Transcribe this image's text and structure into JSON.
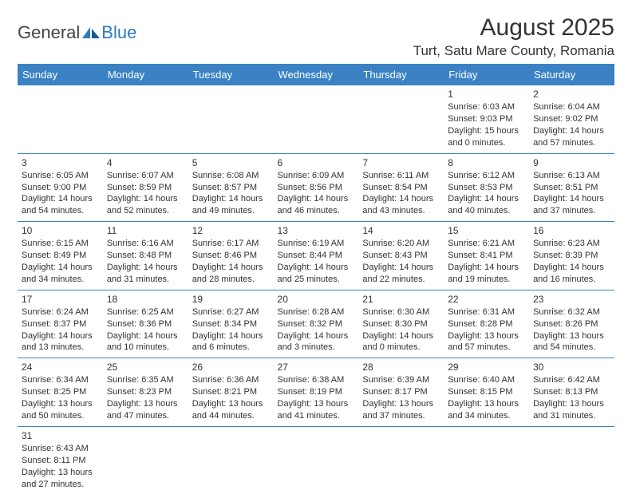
{
  "brand": {
    "part1": "General",
    "part2": "Blue"
  },
  "title": "August 2025",
  "location": "Turt, Satu Mare County, Romania",
  "colors": {
    "header_bg": "#3a82c4",
    "header_fg": "#ffffff",
    "border": "#3a82c4",
    "text": "#333333",
    "brand_accent": "#2b7bbf"
  },
  "weekdays": [
    "Sunday",
    "Monday",
    "Tuesday",
    "Wednesday",
    "Thursday",
    "Friday",
    "Saturday"
  ],
  "weeks": [
    [
      null,
      null,
      null,
      null,
      null,
      {
        "n": "1",
        "sunrise": "6:03 AM",
        "sunset": "9:03 PM",
        "day_h": "15",
        "day_m": "0"
      },
      {
        "n": "2",
        "sunrise": "6:04 AM",
        "sunset": "9:02 PM",
        "day_h": "14",
        "day_m": "57"
      }
    ],
    [
      {
        "n": "3",
        "sunrise": "6:05 AM",
        "sunset": "9:00 PM",
        "day_h": "14",
        "day_m": "54"
      },
      {
        "n": "4",
        "sunrise": "6:07 AM",
        "sunset": "8:59 PM",
        "day_h": "14",
        "day_m": "52"
      },
      {
        "n": "5",
        "sunrise": "6:08 AM",
        "sunset": "8:57 PM",
        "day_h": "14",
        "day_m": "49"
      },
      {
        "n": "6",
        "sunrise": "6:09 AM",
        "sunset": "8:56 PM",
        "day_h": "14",
        "day_m": "46"
      },
      {
        "n": "7",
        "sunrise": "6:11 AM",
        "sunset": "8:54 PM",
        "day_h": "14",
        "day_m": "43"
      },
      {
        "n": "8",
        "sunrise": "6:12 AM",
        "sunset": "8:53 PM",
        "day_h": "14",
        "day_m": "40"
      },
      {
        "n": "9",
        "sunrise": "6:13 AM",
        "sunset": "8:51 PM",
        "day_h": "14",
        "day_m": "37"
      }
    ],
    [
      {
        "n": "10",
        "sunrise": "6:15 AM",
        "sunset": "8:49 PM",
        "day_h": "14",
        "day_m": "34"
      },
      {
        "n": "11",
        "sunrise": "6:16 AM",
        "sunset": "8:48 PM",
        "day_h": "14",
        "day_m": "31"
      },
      {
        "n": "12",
        "sunrise": "6:17 AM",
        "sunset": "8:46 PM",
        "day_h": "14",
        "day_m": "28"
      },
      {
        "n": "13",
        "sunrise": "6:19 AM",
        "sunset": "8:44 PM",
        "day_h": "14",
        "day_m": "25"
      },
      {
        "n": "14",
        "sunrise": "6:20 AM",
        "sunset": "8:43 PM",
        "day_h": "14",
        "day_m": "22"
      },
      {
        "n": "15",
        "sunrise": "6:21 AM",
        "sunset": "8:41 PM",
        "day_h": "14",
        "day_m": "19"
      },
      {
        "n": "16",
        "sunrise": "6:23 AM",
        "sunset": "8:39 PM",
        "day_h": "14",
        "day_m": "16"
      }
    ],
    [
      {
        "n": "17",
        "sunrise": "6:24 AM",
        "sunset": "8:37 PM",
        "day_h": "14",
        "day_m": "13"
      },
      {
        "n": "18",
        "sunrise": "6:25 AM",
        "sunset": "8:36 PM",
        "day_h": "14",
        "day_m": "10"
      },
      {
        "n": "19",
        "sunrise": "6:27 AM",
        "sunset": "8:34 PM",
        "day_h": "14",
        "day_m": "6"
      },
      {
        "n": "20",
        "sunrise": "6:28 AM",
        "sunset": "8:32 PM",
        "day_h": "14",
        "day_m": "3"
      },
      {
        "n": "21",
        "sunrise": "6:30 AM",
        "sunset": "8:30 PM",
        "day_h": "14",
        "day_m": "0"
      },
      {
        "n": "22",
        "sunrise": "6:31 AM",
        "sunset": "8:28 PM",
        "day_h": "13",
        "day_m": "57"
      },
      {
        "n": "23",
        "sunrise": "6:32 AM",
        "sunset": "8:26 PM",
        "day_h": "13",
        "day_m": "54"
      }
    ],
    [
      {
        "n": "24",
        "sunrise": "6:34 AM",
        "sunset": "8:25 PM",
        "day_h": "13",
        "day_m": "50"
      },
      {
        "n": "25",
        "sunrise": "6:35 AM",
        "sunset": "8:23 PM",
        "day_h": "13",
        "day_m": "47"
      },
      {
        "n": "26",
        "sunrise": "6:36 AM",
        "sunset": "8:21 PM",
        "day_h": "13",
        "day_m": "44"
      },
      {
        "n": "27",
        "sunrise": "6:38 AM",
        "sunset": "8:19 PM",
        "day_h": "13",
        "day_m": "41"
      },
      {
        "n": "28",
        "sunrise": "6:39 AM",
        "sunset": "8:17 PM",
        "day_h": "13",
        "day_m": "37"
      },
      {
        "n": "29",
        "sunrise": "6:40 AM",
        "sunset": "8:15 PM",
        "day_h": "13",
        "day_m": "34"
      },
      {
        "n": "30",
        "sunrise": "6:42 AM",
        "sunset": "8:13 PM",
        "day_h": "13",
        "day_m": "31"
      }
    ],
    [
      {
        "n": "31",
        "sunrise": "6:43 AM",
        "sunset": "8:11 PM",
        "day_h": "13",
        "day_m": "27"
      },
      null,
      null,
      null,
      null,
      null,
      null
    ]
  ],
  "labels": {
    "sunrise": "Sunrise: ",
    "sunset": "Sunset: ",
    "daylight_pre": "Daylight: ",
    "hours_mid": " hours and ",
    "minutes_suf": " minutes."
  }
}
